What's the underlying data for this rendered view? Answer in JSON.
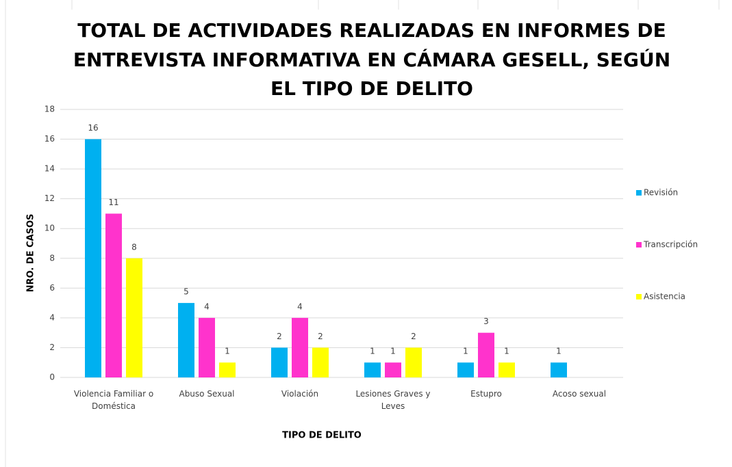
{
  "chart_data": {
    "type": "bar",
    "title": [
      "TOTAL DE ACTIVIDADES REALIZADAS EN INFORMES DE",
      "ENTREVISTA INFORMATIVA EN CÁMARA GESELL, SEGÚN",
      "EL TIPO DE DELITO"
    ],
    "x_label": "TIPO DE DELITO",
    "y_label": "NRO. DE CASOS",
    "categories": [
      "Violencia Familiar o Doméstica",
      "Abuso Sexual",
      "Violación",
      "Lesiones Graves y Leves",
      "Estupro",
      "Acoso sexual"
    ],
    "series": [
      {
        "name": "Revisión",
        "color": "#00b0f0",
        "values": [
          16,
          5,
          2,
          1,
          1,
          1
        ]
      },
      {
        "name": "Transcripción",
        "color": "#ff33cc",
        "values": [
          11,
          4,
          4,
          1,
          3,
          null
        ]
      },
      {
        "name": "Asistencia",
        "color": "#ffff00",
        "values": [
          8,
          1,
          2,
          2,
          1,
          null
        ]
      }
    ],
    "ylim": [
      0,
      18
    ],
    "yticks": [
      0,
      2,
      4,
      6,
      8,
      10,
      12,
      14,
      16,
      18
    ],
    "grid": true,
    "legend": "right",
    "data_labels": true
  }
}
